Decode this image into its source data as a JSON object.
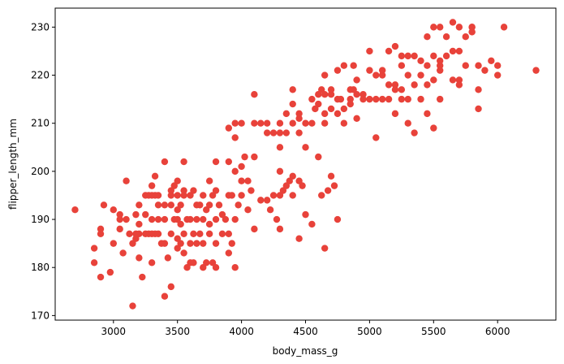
{
  "chart_data": {
    "type": "scatter",
    "title": "",
    "xlabel": "body_mass_g",
    "ylabel": "flipper_length_mm",
    "xlim": [
      2545,
      6455
    ],
    "ylim": [
      169.05,
      233.95
    ],
    "xticks": [
      3000,
      3500,
      4000,
      4500,
      5000,
      5500,
      6000
    ],
    "yticks": [
      170,
      180,
      190,
      200,
      210,
      220,
      230
    ],
    "grid": false,
    "marker_color": "#e8423a",
    "series": [
      {
        "points": [
          [
            2700,
            192
          ],
          [
            2850,
            181
          ],
          [
            2850,
            184
          ],
          [
            2900,
            178
          ],
          [
            2900,
            187
          ],
          [
            2900,
            188
          ],
          [
            2925,
            193
          ],
          [
            2975,
            179
          ],
          [
            3000,
            185
          ],
          [
            3000,
            192
          ],
          [
            3050,
            188
          ],
          [
            3050,
            190
          ],
          [
            3050,
            191
          ],
          [
            3075,
            183
          ],
          [
            3100,
            190
          ],
          [
            3100,
            198
          ],
          [
            3125,
            187
          ],
          [
            3150,
            172
          ],
          [
            3150,
            185
          ],
          [
            3175,
            186
          ],
          [
            3175,
            187
          ],
          [
            3175,
            191
          ],
          [
            3200,
            182
          ],
          [
            3200,
            187
          ],
          [
            3200,
            189
          ],
          [
            3200,
            193
          ],
          [
            3225,
            178
          ],
          [
            3250,
            187
          ],
          [
            3250,
            195
          ],
          [
            3250,
            191
          ],
          [
            3275,
            187
          ],
          [
            3275,
            195
          ],
          [
            3300,
            181
          ],
          [
            3300,
            187
          ],
          [
            3300,
            190
          ],
          [
            3300,
            195
          ],
          [
            3300,
            197
          ],
          [
            3325,
            187
          ],
          [
            3325,
            195
          ],
          [
            3325,
            199
          ],
          [
            3350,
            187
          ],
          [
            3350,
            190
          ],
          [
            3350,
            193
          ],
          [
            3350,
            195
          ],
          [
            3375,
            185
          ],
          [
            3400,
            174
          ],
          [
            3400,
            185
          ],
          [
            3400,
            190
          ],
          [
            3400,
            193
          ],
          [
            3400,
            202
          ],
          [
            3425,
            182
          ],
          [
            3450,
            176
          ],
          [
            3450,
            187
          ],
          [
            3450,
            193
          ],
          [
            3450,
            195
          ],
          [
            3450,
            196
          ],
          [
            3475,
            190
          ],
          [
            3475,
            197
          ],
          [
            3500,
            184
          ],
          [
            3500,
            186
          ],
          [
            3500,
            190
          ],
          [
            3500,
            192
          ],
          [
            3500,
            195
          ],
          [
            3500,
            198
          ],
          [
            3525,
            185
          ],
          [
            3525,
            189
          ],
          [
            3525,
            193
          ],
          [
            3550,
            183
          ],
          [
            3550,
            187
          ],
          [
            3550,
            195
          ],
          [
            3550,
            196
          ],
          [
            3550,
            202
          ],
          [
            3575,
            180
          ],
          [
            3575,
            190
          ],
          [
            3600,
            181
          ],
          [
            3600,
            185
          ],
          [
            3600,
            190
          ],
          [
            3600,
            195
          ],
          [
            3625,
            181
          ],
          [
            3625,
            187
          ],
          [
            3625,
            196
          ],
          [
            3650,
            185
          ],
          [
            3650,
            190
          ],
          [
            3650,
            193
          ],
          [
            3675,
            187
          ],
          [
            3675,
            193
          ],
          [
            3700,
            180
          ],
          [
            3700,
            185
          ],
          [
            3700,
            190
          ],
          [
            3700,
            195
          ],
          [
            3725,
            181
          ],
          [
            3725,
            192
          ],
          [
            3750,
            187
          ],
          [
            3750,
            189
          ],
          [
            3750,
            193
          ],
          [
            3750,
            198
          ],
          [
            3775,
            181
          ],
          [
            3775,
            195
          ],
          [
            3800,
            180
          ],
          [
            3800,
            185
          ],
          [
            3800,
            190
          ],
          [
            3800,
            196
          ],
          [
            3800,
            202
          ],
          [
            3825,
            193
          ],
          [
            3850,
            187
          ],
          [
            3850,
            191
          ],
          [
            3875,
            190
          ],
          [
            3900,
            183
          ],
          [
            3900,
            187
          ],
          [
            3900,
            195
          ],
          [
            3900,
            202
          ],
          [
            3925,
            185
          ],
          [
            3925,
            195
          ],
          [
            3950,
            180
          ],
          [
            3950,
            190
          ],
          [
            3950,
            200
          ],
          [
            3975,
            193
          ],
          [
            4000,
            195
          ],
          [
            4000,
            198
          ],
          [
            4000,
            201
          ],
          [
            4025,
            203
          ],
          [
            4050,
            192
          ],
          [
            4050,
            198
          ],
          [
            4075,
            196
          ],
          [
            4100,
            188
          ],
          [
            4100,
            203
          ],
          [
            4100,
            216
          ],
          [
            4150,
            194
          ],
          [
            4200,
            194
          ],
          [
            4225,
            192
          ],
          [
            4250,
            195
          ],
          [
            4275,
            190
          ],
          [
            4300,
            188
          ],
          [
            4300,
            195
          ],
          [
            4300,
            200
          ],
          [
            4325,
            196
          ],
          [
            4350,
            197
          ],
          [
            4375,
            198
          ],
          [
            4400,
            195
          ],
          [
            4400,
            199
          ],
          [
            4450,
            186
          ],
          [
            4450,
            198
          ],
          [
            4475,
            197
          ],
          [
            4500,
            191
          ],
          [
            4550,
            189
          ],
          [
            4625,
            195
          ],
          [
            4650,
            184
          ],
          [
            4675,
            196
          ],
          [
            4700,
            199
          ],
          [
            4725,
            197
          ],
          [
            4750,
            190
          ],
          [
            3900,
            209
          ],
          [
            3950,
            207
          ],
          [
            3950,
            210
          ],
          [
            4000,
            210
          ],
          [
            4100,
            210
          ],
          [
            4150,
            210
          ],
          [
            4200,
            208
          ],
          [
            4200,
            210
          ],
          [
            4250,
            208
          ],
          [
            4300,
            205
          ],
          [
            4300,
            208
          ],
          [
            4300,
            210
          ],
          [
            4350,
            208
          ],
          [
            4350,
            212
          ],
          [
            4400,
            210
          ],
          [
            4400,
            214
          ],
          [
            4400,
            217
          ],
          [
            4450,
            211
          ],
          [
            4450,
            212
          ],
          [
            4450,
            208
          ],
          [
            4500,
            210
          ],
          [
            4500,
            205
          ],
          [
            4550,
            210
          ],
          [
            4550,
            215
          ],
          [
            4575,
            213
          ],
          [
            4600,
            216
          ],
          [
            4600,
            203
          ],
          [
            4650,
            210
          ],
          [
            4650,
            212
          ],
          [
            4700,
            217
          ],
          [
            4700,
            213
          ],
          [
            4700,
            216
          ],
          [
            4750,
            215
          ],
          [
            4750,
            212
          ],
          [
            4800,
            210
          ],
          [
            4850,
            214
          ],
          [
            4850,
            215
          ],
          [
            4875,
            217
          ],
          [
            4900,
            219
          ],
          [
            4900,
            211
          ],
          [
            4950,
            215
          ],
          [
            5000,
            215
          ],
          [
            5000,
            225
          ],
          [
            5050,
            207
          ],
          [
            5050,
            215
          ],
          [
            5100,
            215
          ],
          [
            5100,
            220
          ],
          [
            5150,
            215
          ],
          [
            5200,
            212
          ],
          [
            5200,
            217
          ],
          [
            5200,
            226
          ],
          [
            5250,
            215
          ],
          [
            5250,
            217
          ],
          [
            5250,
            222
          ],
          [
            5300,
            215
          ],
          [
            5300,
            210
          ],
          [
            5300,
            220
          ],
          [
            5350,
            208
          ],
          [
            5350,
            218
          ],
          [
            5400,
            215
          ],
          [
            5400,
            220
          ],
          [
            5450,
            212
          ],
          [
            5450,
            218
          ],
          [
            5500,
            209
          ],
          [
            5500,
            219
          ],
          [
            5550,
            215
          ],
          [
            5550,
            221
          ],
          [
            5550,
            222
          ],
          [
            5550,
            230
          ],
          [
            5600,
            228
          ],
          [
            5650,
            219
          ],
          [
            5700,
            219
          ],
          [
            5700,
            230
          ],
          [
            5750,
            222
          ],
          [
            5800,
            229
          ],
          [
            5800,
            230
          ],
          [
            5850,
            217
          ],
          [
            5850,
            213
          ],
          [
            5950,
            223
          ],
          [
            6000,
            220
          ],
          [
            6000,
            222
          ],
          [
            6050,
            230
          ],
          [
            6300,
            221
          ],
          [
            4650,
            220
          ],
          [
            4750,
            221
          ],
          [
            4800,
            222
          ],
          [
            4875,
            222
          ],
          [
            5000,
            221
          ],
          [
            5100,
            221
          ],
          [
            5150,
            218
          ],
          [
            5200,
            218
          ],
          [
            5300,
            224
          ],
          [
            5400,
            223
          ],
          [
            5450,
            222
          ],
          [
            5500,
            224
          ],
          [
            5550,
            223
          ],
          [
            5600,
            224
          ],
          [
            5650,
            231
          ],
          [
            5700,
            225
          ],
          [
            5750,
            228
          ],
          [
            5800,
            230
          ],
          [
            5850,
            222
          ],
          [
            5900,
            221
          ],
          [
            4600,
            214
          ],
          [
            4625,
            217
          ],
          [
            4650,
            216
          ],
          [
            4775,
            215
          ],
          [
            4800,
            213
          ],
          [
            4850,
            217
          ],
          [
            4900,
            216
          ],
          [
            4950,
            216
          ],
          [
            5050,
            220
          ],
          [
            5150,
            225
          ],
          [
            5250,
            224
          ],
          [
            5350,
            224
          ],
          [
            5450,
            228
          ],
          [
            5500,
            230
          ],
          [
            5650,
            225
          ],
          [
            5700,
            218
          ],
          [
            5800,
            229
          ]
        ]
      }
    ]
  }
}
